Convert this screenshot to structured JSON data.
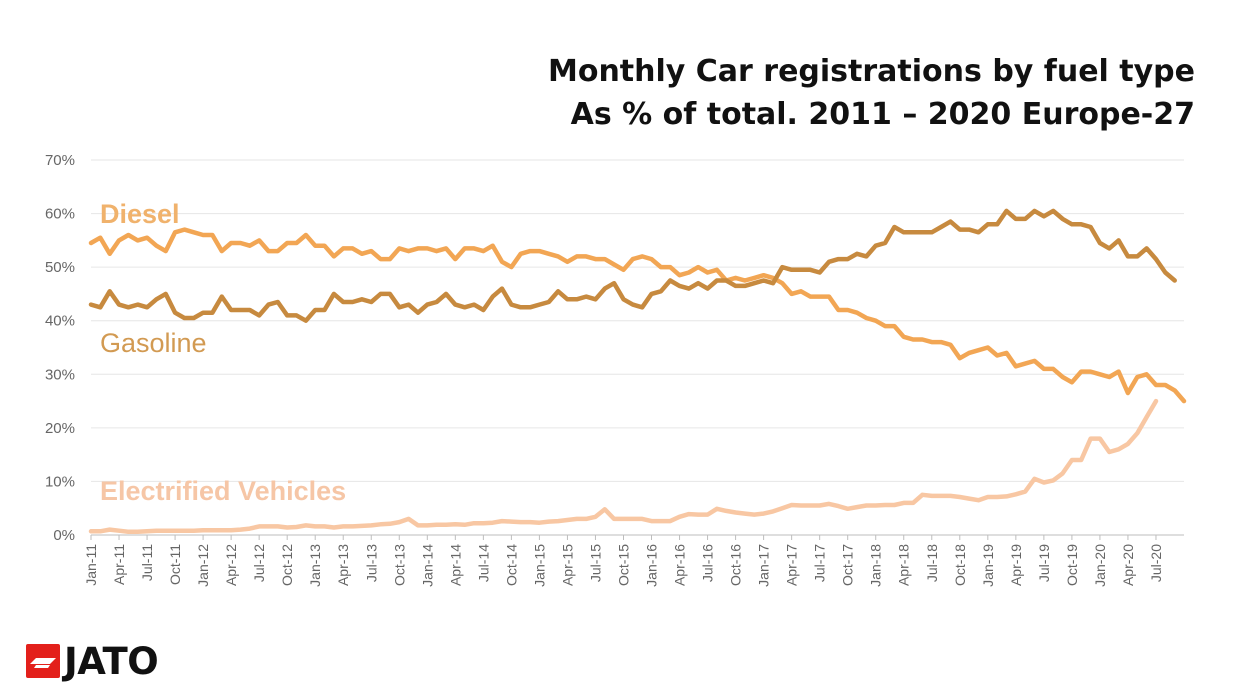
{
  "title_line1": "Monthly Car registrations by fuel type",
  "title_line2": "As % of total. 2011 – 2020 Europe-27",
  "logo_text": "JATO",
  "chart_data": {
    "type": "line",
    "title": "Monthly Car registrations by fuel type",
    "subtitle": "As % of total. 2011 – 2020 Europe-27",
    "xlabel": "",
    "ylabel": "",
    "ylim": [
      0,
      70
    ],
    "yticks": [
      "0%",
      "10%",
      "20%",
      "30%",
      "40%",
      "50%",
      "60%",
      "70%"
    ],
    "grid": true,
    "legend": "inline-labels",
    "x_start": "Jan-11",
    "xticks": [
      "Jan-11",
      "Apr-11",
      "Jul-11",
      "Oct-11",
      "Jan-12",
      "Apr-12",
      "Jul-12",
      "Oct-12",
      "Jan-13",
      "Apr-13",
      "Jul-13",
      "Oct-13",
      "Jan-14",
      "Apr-14",
      "Jul-14",
      "Oct-14",
      "Jan-15",
      "Apr-15",
      "Jul-15",
      "Oct-15",
      "Jan-16",
      "Apr-16",
      "Jul-16",
      "Oct-16",
      "Jan-17",
      "Apr-17",
      "Jul-17",
      "Oct-17",
      "Jan-18",
      "Apr-18",
      "Jul-18",
      "Oct-18",
      "Jan-19",
      "Apr-19",
      "Jul-19",
      "Oct-19",
      "Jan-20",
      "Apr-20",
      "Jul-20"
    ],
    "series": [
      {
        "name": "Diesel",
        "color": "#f2a654",
        "label_color": "#f0b26c",
        "values": [
          54.5,
          55.5,
          52.5,
          55,
          56,
          55,
          55.5,
          54,
          53,
          56.5,
          57,
          56.5,
          56,
          56,
          53,
          54.5,
          54.5,
          54,
          55,
          53,
          53,
          54.5,
          54.5,
          56,
          54,
          54,
          52,
          53.5,
          53.5,
          52.5,
          53,
          51.5,
          51.5,
          53.5,
          53,
          53.5,
          53.5,
          53,
          53.5,
          51.5,
          53.5,
          53.5,
          53,
          54,
          51,
          50,
          52.5,
          53,
          53,
          52.5,
          52,
          51,
          52,
          52,
          51.5,
          51.5,
          50.5,
          49.5,
          51.5,
          52,
          51.5,
          50,
          50,
          48.5,
          49,
          50,
          49,
          49.5,
          47.5,
          48,
          47.5,
          48,
          48.5,
          48,
          47,
          45,
          45.5,
          44.5,
          44.5,
          44.5,
          42,
          42,
          41.5,
          40.5,
          40,
          39,
          39,
          37,
          36.5,
          36.5,
          36,
          36,
          35.5,
          33,
          34,
          34.5,
          35,
          33.5,
          34,
          31.5,
          32,
          32.5,
          31,
          31,
          29.5,
          28.5,
          30.5,
          30.5,
          30,
          29.5,
          30.5,
          26.5,
          29.5,
          30,
          28,
          28,
          27,
          25
        ]
      },
      {
        "name": "Gasoline",
        "color": "#c78a3f",
        "label_color": "#d29a52",
        "values": [
          43,
          42.5,
          45.5,
          43,
          42.5,
          43,
          42.5,
          44,
          45,
          41.5,
          40.5,
          40.5,
          41.5,
          41.5,
          44.5,
          42,
          42,
          42,
          41,
          43,
          43.5,
          41,
          41,
          40,
          42,
          42,
          45,
          43.5,
          43.5,
          44,
          43.5,
          45,
          45,
          42.5,
          43,
          41.5,
          43,
          43.5,
          45,
          43,
          42.5,
          43,
          42,
          44.5,
          46,
          43,
          42.5,
          42.5,
          43,
          43.5,
          45.5,
          44,
          44,
          44.5,
          44,
          46,
          47,
          44,
          43,
          42.5,
          45,
          45.5,
          47.5,
          46.5,
          46,
          47,
          46,
          47.5,
          47.5,
          46.5,
          46.5,
          47,
          47.5,
          47,
          50,
          49.5,
          49.5,
          49.5,
          49,
          51,
          51.5,
          51.5,
          52.5,
          52,
          54,
          54.5,
          57.5,
          56.5,
          56.5,
          56.5,
          56.5,
          57.5,
          58.5,
          57,
          57,
          56.5,
          58,
          58,
          60.5,
          59,
          59,
          60.5,
          59.5,
          60.5,
          59,
          58,
          58,
          57.5,
          54.5,
          53.5,
          55,
          52,
          52,
          53.5,
          51.5,
          49,
          47.5
        ]
      },
      {
        "name": "Electrified Vehicles",
        "color": "#f8c7a3",
        "label_color": "#f6c6a6",
        "values": [
          0.7,
          0.7,
          1,
          0.8,
          0.6,
          0.6,
          0.7,
          0.8,
          0.8,
          0.8,
          0.8,
          0.8,
          0.9,
          0.9,
          0.9,
          0.9,
          1,
          1.2,
          1.6,
          1.6,
          1.6,
          1.4,
          1.5,
          1.8,
          1.6,
          1.6,
          1.4,
          1.6,
          1.6,
          1.7,
          1.8,
          2,
          2.1,
          2.4,
          3,
          1.8,
          1.8,
          1.9,
          1.9,
          2,
          1.9,
          2.2,
          2.2,
          2.3,
          2.6,
          2.5,
          2.4,
          2.4,
          2.3,
          2.5,
          2.6,
          2.8,
          3,
          3,
          3.4,
          4.8,
          3,
          3,
          3,
          3,
          2.6,
          2.6,
          2.6,
          3.4,
          3.9,
          3.8,
          3.8,
          4.9,
          4.5,
          4.2,
          4,
          3.8,
          4,
          4.4,
          5,
          5.6,
          5.5,
          5.5,
          5.5,
          5.8,
          5.4,
          4.9,
          5.2,
          5.5,
          5.5,
          5.6,
          5.6,
          6,
          6,
          7.5,
          7.3,
          7.3,
          7.3,
          7.1,
          6.8,
          6.5,
          7.1,
          7.1,
          7.2,
          7.6,
          8.1,
          10.5,
          9.8,
          10.2,
          11.5,
          14,
          14,
          18,
          18,
          15.5,
          16,
          17,
          19,
          22,
          25
        ]
      }
    ]
  }
}
